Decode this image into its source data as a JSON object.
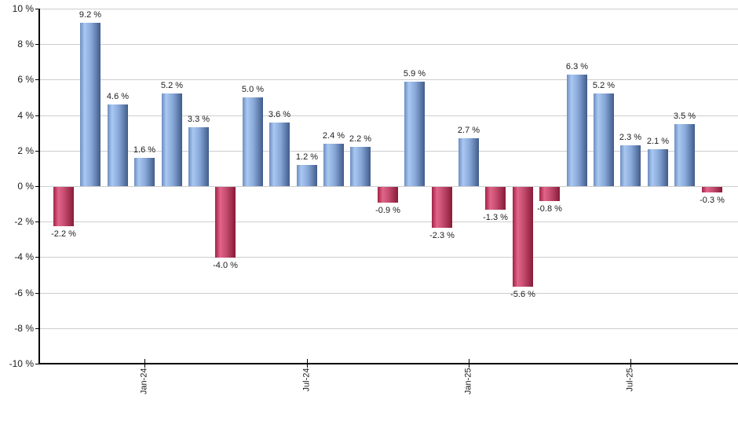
{
  "chart_data": {
    "type": "bar",
    "title": "",
    "xlabel": "",
    "ylabel": "",
    "grid": true,
    "legend": null,
    "y_axis": {
      "min": -10,
      "max": 10,
      "step": 2,
      "unit": "%"
    },
    "y_tick_labels": [
      "10 %",
      "8 %",
      "6 %",
      "4 %",
      "2 %",
      "0 %",
      "-2 %",
      "-4 %",
      "-6 %",
      "-8 %",
      "-10 %"
    ],
    "x_ticks": [
      {
        "index": 3,
        "label": "Jan-24"
      },
      {
        "index": 9,
        "label": "Jul-24"
      },
      {
        "index": 15,
        "label": "Jan-25"
      },
      {
        "index": 21,
        "label": "Jul-25"
      }
    ],
    "bars": [
      {
        "value": -2.2,
        "label": "-2.2 %"
      },
      {
        "value": 9.2,
        "label": "9.2 %"
      },
      {
        "value": 4.6,
        "label": "4.6 %"
      },
      {
        "value": 1.6,
        "label": "1.6 %"
      },
      {
        "value": 5.2,
        "label": "5.2 %"
      },
      {
        "value": 3.3,
        "label": "3.3 %"
      },
      {
        "value": -4.0,
        "label": "-4.0 %"
      },
      {
        "value": 5.0,
        "label": "5.0 %"
      },
      {
        "value": 3.6,
        "label": "3.6 %"
      },
      {
        "value": 1.2,
        "label": "1.2 %"
      },
      {
        "value": 2.4,
        "label": "2.4 %"
      },
      {
        "value": 2.2,
        "label": "2.2 %"
      },
      {
        "value": -0.9,
        "label": "-0.9 %"
      },
      {
        "value": 5.9,
        "label": "5.9 %"
      },
      {
        "value": -2.3,
        "label": "-2.3 %"
      },
      {
        "value": 2.7,
        "label": "2.7 %"
      },
      {
        "value": -1.3,
        "label": "-1.3 %"
      },
      {
        "value": -5.6,
        "label": "-5.6 %"
      },
      {
        "value": -0.8,
        "label": "-0.8 %"
      },
      {
        "value": 6.3,
        "label": "6.3 %"
      },
      {
        "value": 5.2,
        "label": "5.2 %"
      },
      {
        "value": 2.3,
        "label": "2.3 %"
      },
      {
        "value": 2.1,
        "label": "2.1 %"
      },
      {
        "value": 3.5,
        "label": "3.5 %"
      },
      {
        "value": -0.3,
        "label": "-0.3 %"
      }
    ],
    "colors": {
      "positive_gradient": [
        "#6d8dc0",
        "#a9c8f2",
        "#87a7d8",
        "#415c8a"
      ],
      "negative_gradient": [
        "#a02346",
        "#e2658a",
        "#c34b6e",
        "#871b37"
      ],
      "gridline": "#cdcdcd",
      "axis": "#000000",
      "text": "#1c1c1c",
      "background": "#ffffff"
    }
  }
}
